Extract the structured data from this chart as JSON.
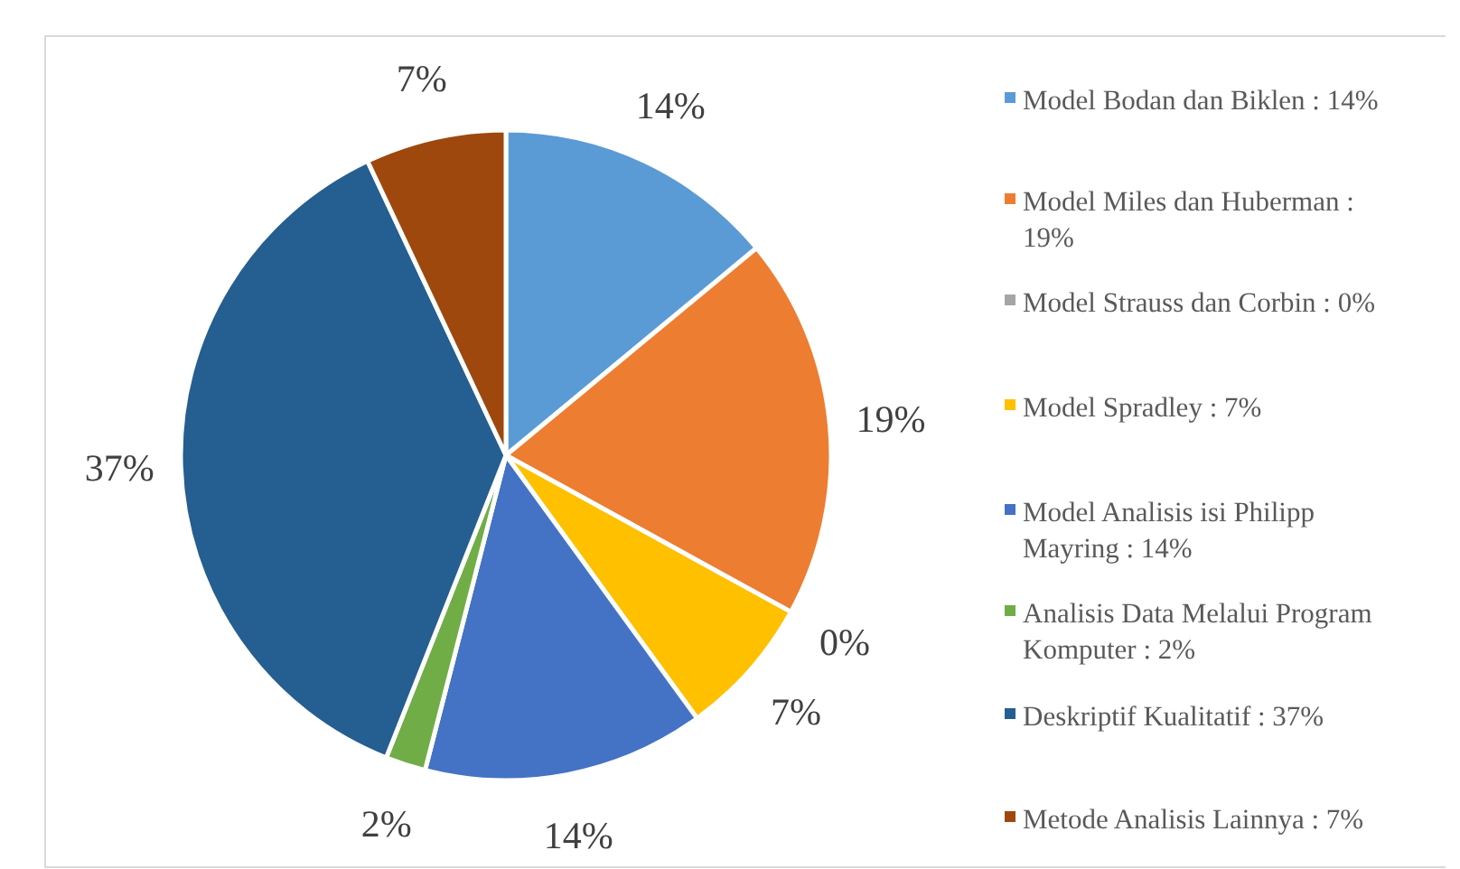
{
  "chart_data": {
    "type": "pie",
    "categories": [
      "Model Bodan dan Biklen : 14%",
      "Model Miles dan Huberman : 19%",
      "Model Strauss dan Corbin : 0%",
      "Model Spradley : 7%",
      "Model Analisis isi Philipp Mayring : 14%",
      "Analisis Data Melalui Program Komputer : 2%",
      "Deskriptif Kualitatif : 37%",
      "Metode Analisis Lainnya : 7%"
    ],
    "values": [
      14,
      19,
      0,
      7,
      14,
      2,
      37,
      7
    ],
    "colors": [
      "#5b9bd5",
      "#ed7d31",
      "#a5a5a5",
      "#ffc000",
      "#4472c4",
      "#70ad47",
      "#255e91",
      "#9e480e"
    ],
    "value_labels": [
      "14%",
      "19%",
      "0%",
      "7%",
      "14%",
      "2%",
      "37%",
      "7%"
    ],
    "legend": "right"
  }
}
